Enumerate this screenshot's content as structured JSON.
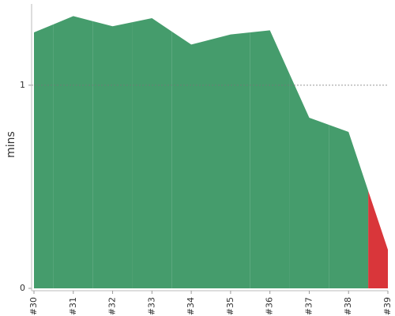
{
  "chart_data": {
    "type": "area",
    "y_label": "mins",
    "categories": [
      "#30",
      "#31",
      "#32",
      "#33",
      "#34",
      "#35",
      "#36",
      "#37",
      "#38",
      "#39"
    ],
    "values": [
      1.26,
      1.34,
      1.29,
      1.33,
      1.2,
      1.25,
      1.27,
      0.84,
      0.77,
      0.19
    ],
    "colors": [
      "#459c6c",
      "#459c6c",
      "#459c6c",
      "#459c6c",
      "#459c6c",
      "#459c6c",
      "#459c6c",
      "#459c6c",
      "#459c6c",
      "#d9363a"
    ],
    "ylim": [
      0,
      1.4
    ],
    "yticks": [
      0,
      1
    ],
    "grid": true
  }
}
